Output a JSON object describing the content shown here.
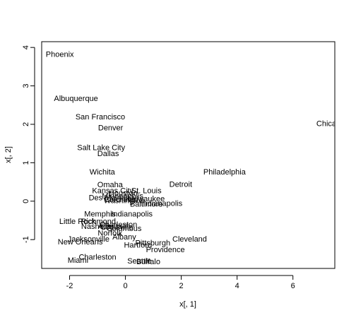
{
  "chart_data": {
    "type": "scatter",
    "title": "",
    "xlabel": "x[, 1]",
    "ylabel": "x[, 2]",
    "xlim": [
      -3.0,
      7.5
    ],
    "ylim": [
      -1.75,
      4.15
    ],
    "x_ticks": [
      -2,
      0,
      2,
      4,
      6
    ],
    "y_ticks": [
      -1,
      0,
      1,
      2,
      3,
      4
    ],
    "x_tick_labels": [
      "-2",
      "0",
      "2",
      "4",
      "6"
    ],
    "y_tick_labels": [
      "-1",
      "0",
      "1",
      "2",
      "3",
      "4"
    ],
    "grid": false,
    "legend": "none",
    "points": [
      {
        "label": "Phoenix",
        "x": -2.35,
        "y": 3.83
      },
      {
        "label": "Albuquerque",
        "x": -1.77,
        "y": 2.68
      },
      {
        "label": "San Francisco",
        "x": -0.9,
        "y": 2.2
      },
      {
        "label": "Denver",
        "x": -0.53,
        "y": 1.92
      },
      {
        "label": "Chicago",
        "x": 7.35,
        "y": 2.03
      },
      {
        "label": "Salt Lake City",
        "x": -0.87,
        "y": 1.4
      },
      {
        "label": "Dallas",
        "x": -0.62,
        "y": 1.25
      },
      {
        "label": "Wichita",
        "x": -0.83,
        "y": 0.77
      },
      {
        "label": "Philadelphia",
        "x": 3.55,
        "y": 0.77
      },
      {
        "label": "Omaha",
        "x": -0.55,
        "y": 0.44
      },
      {
        "label": "Detroit",
        "x": 1.98,
        "y": 0.45
      },
      {
        "label": "Kansas City",
        "x": -0.45,
        "y": 0.28
      },
      {
        "label": "St. Louis",
        "x": 0.75,
        "y": 0.28
      },
      {
        "label": "Houston",
        "x": -0.08,
        "y": 0.22
      },
      {
        "label": "Minneapolis",
        "x": -0.1,
        "y": 0.14
      },
      {
        "label": "Des Moines",
        "x": -0.58,
        "y": 0.1
      },
      {
        "label": "Cincinnati",
        "x": -0.15,
        "y": 0.05
      },
      {
        "label": "Milwaukee",
        "x": 0.75,
        "y": 0.07
      },
      {
        "label": "Washington",
        "x": -0.05,
        "y": 0.02
      },
      {
        "label": "Baltimore",
        "x": 0.75,
        "y": -0.07
      },
      {
        "label": "Indianapolis",
        "x": 1.3,
        "y": -0.05
      },
      {
        "label": "Memphis",
        "x": -0.91,
        "y": -0.33
      },
      {
        "label": "Indianapolis",
        "x": 0.23,
        "y": -0.33
      },
      {
        "label": "Little Rock",
        "x": -1.72,
        "y": -0.52
      },
      {
        "label": "Richmond",
        "x": -0.97,
        "y": -0.52
      },
      {
        "label": "Nashville",
        "x": -1.02,
        "y": -0.65
      },
      {
        "label": "Atlanta",
        "x": -0.55,
        "y": -0.65
      },
      {
        "label": "Charleston",
        "x": -0.25,
        "y": -0.6
      },
      {
        "label": "Louisville",
        "x": -0.3,
        "y": -0.67
      },
      {
        "label": "Columbus",
        "x": -0.05,
        "y": -0.7
      },
      {
        "label": "Norfolk",
        "x": -0.55,
        "y": -0.82
      },
      {
        "label": "Albany",
        "x": -0.04,
        "y": -0.92
      },
      {
        "label": "Cleveland",
        "x": 2.3,
        "y": -0.98
      },
      {
        "label": "Jacksonville",
        "x": -1.32,
        "y": -0.98
      },
      {
        "label": "New Orleans",
        "x": -1.62,
        "y": -1.05
      },
      {
        "label": "Hartford",
        "x": 0.45,
        "y": -1.13
      },
      {
        "label": "Pittsburgh",
        "x": 0.98,
        "y": -1.08
      },
      {
        "label": "Providence",
        "x": 1.43,
        "y": -1.25
      },
      {
        "label": "Charleston",
        "x": -1.0,
        "y": -1.45
      },
      {
        "label": "Miami",
        "x": -1.7,
        "y": -1.53
      },
      {
        "label": "Seattle",
        "x": 0.5,
        "y": -1.55
      },
      {
        "label": "Buffalo",
        "x": 0.82,
        "y": -1.57
      }
    ]
  }
}
